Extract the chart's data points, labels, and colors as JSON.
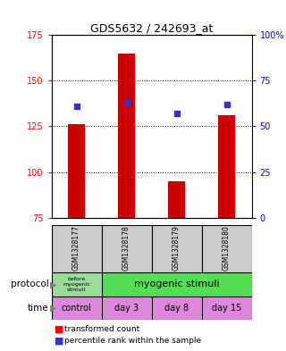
{
  "title": "GDS5632 / 242693_at",
  "samples": [
    "GSM1328177",
    "GSM1328178",
    "GSM1328179",
    "GSM1328180"
  ],
  "bar_values": [
    126,
    165,
    95,
    131
  ],
  "bar_color": "#cc0000",
  "blue_values": [
    61,
    63,
    57,
    62
  ],
  "blue_color": "#3333cc",
  "ylim_left": [
    75,
    175
  ],
  "ylim_right": [
    0,
    100
  ],
  "yticks_left": [
    75,
    100,
    125,
    150,
    175
  ],
  "yticks_right": [
    0,
    25,
    50,
    75,
    100
  ],
  "ytick_labels_right": [
    "0",
    "25",
    "50",
    "75",
    "100%"
  ],
  "bar_bottom": 75,
  "time_labels": [
    "control",
    "day 3",
    "day 8",
    "day 15"
  ],
  "protocol_color_light": "#99dd99",
  "protocol_color_bright": "#55dd55",
  "time_color": "#dd88dd",
  "sample_bg": "#cccccc",
  "bar_width": 0.35
}
